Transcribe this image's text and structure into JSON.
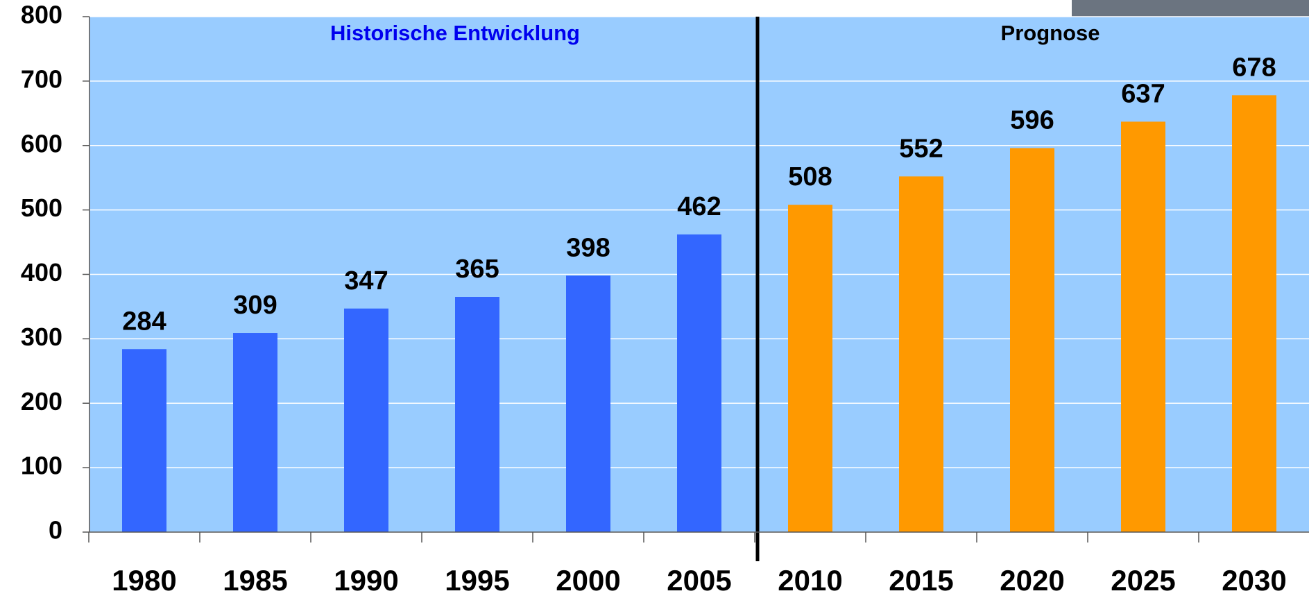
{
  "chart_data": {
    "type": "bar",
    "categories": [
      "1980",
      "1985",
      "1990",
      "1995",
      "2000",
      "2005",
      "2010",
      "2015",
      "2020",
      "2025",
      "2030"
    ],
    "series": [
      {
        "name": "Historische Entwicklung",
        "color": "#3366ff",
        "values": [
          284,
          309,
          347,
          365,
          398,
          462,
          null,
          null,
          null,
          null,
          null
        ]
      },
      {
        "name": "Prognose",
        "color": "#ff9900",
        "values": [
          null,
          null,
          null,
          null,
          null,
          null,
          508,
          552,
          596,
          637,
          678
        ]
      }
    ],
    "ylim": [
      0,
      800
    ],
    "yticks": [
      0,
      100,
      200,
      300,
      400,
      500,
      600,
      700,
      800
    ],
    "grid": true
  }
}
